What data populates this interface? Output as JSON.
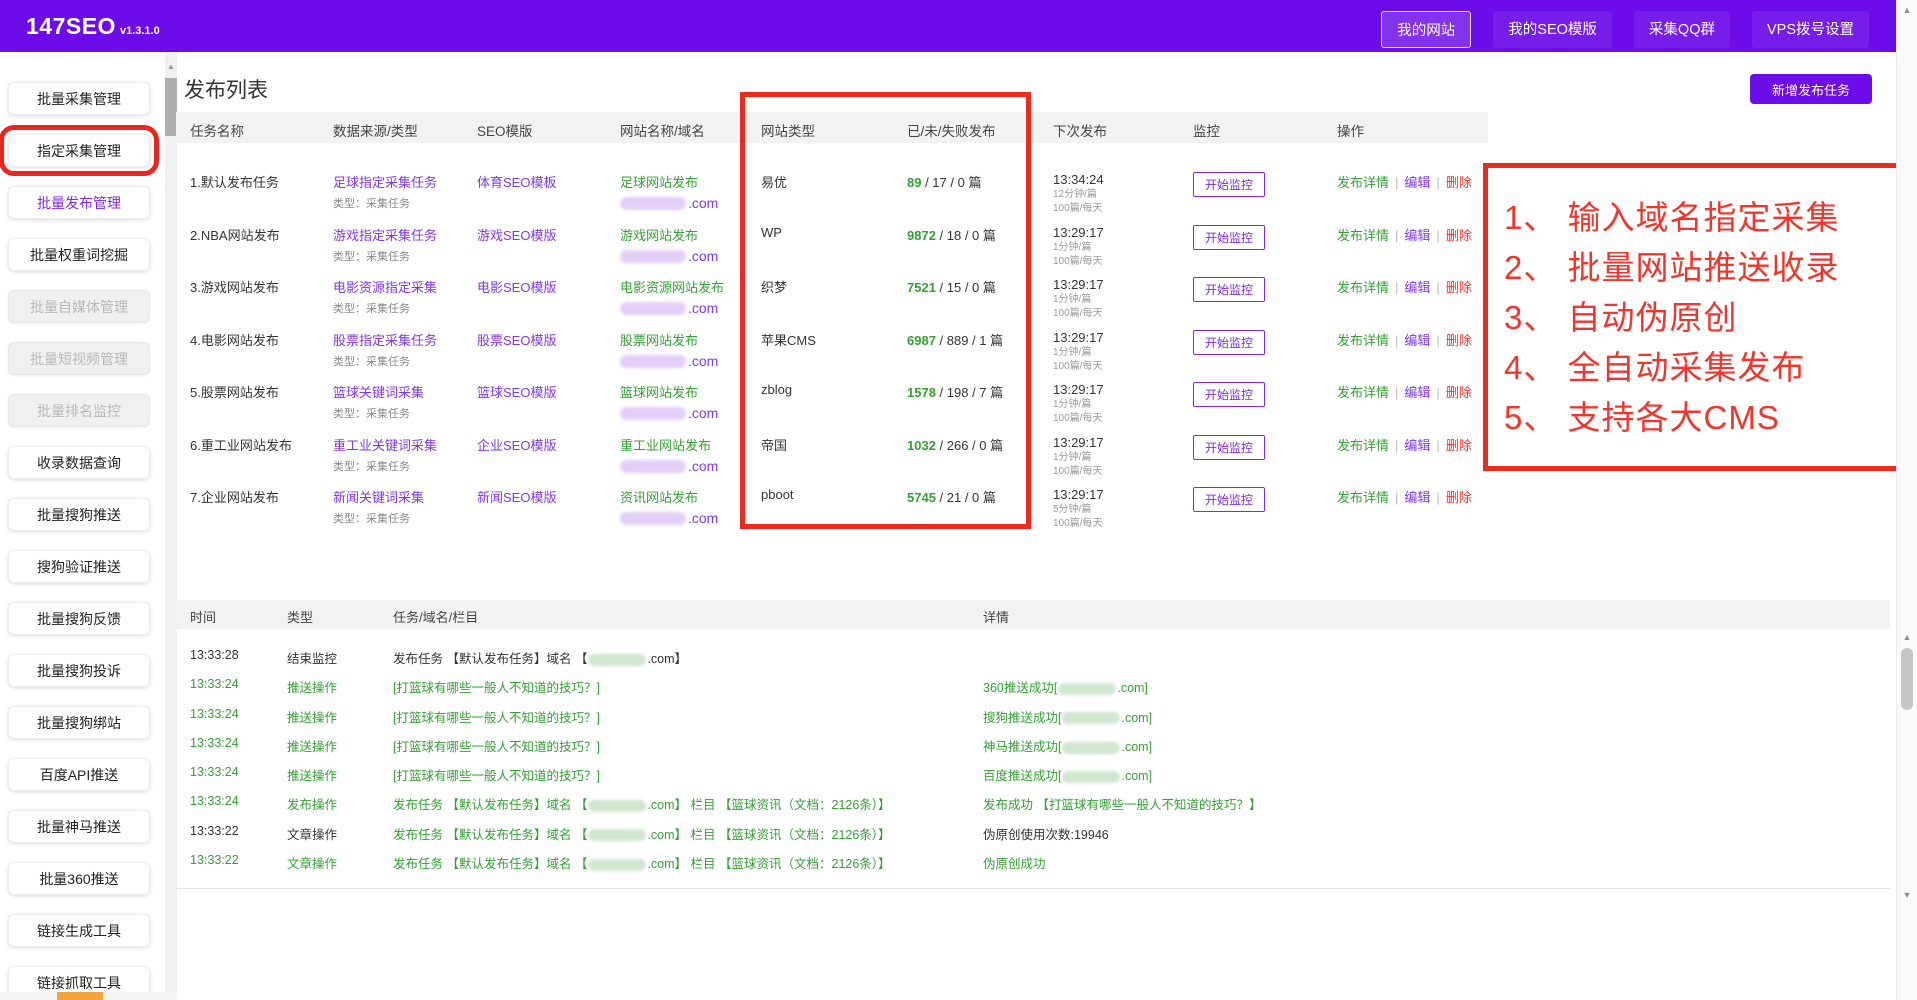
{
  "colors": {
    "accent_purple": "#6c0ce8",
    "link_purple": "#8038e8",
    "green": "#34a034",
    "annotation_red": "#f2352c",
    "box_red": "#ec2b20"
  },
  "header": {
    "logo": "147SEO",
    "version": "v1.3.1.0",
    "nav": [
      {
        "label": "我的网站",
        "active": true
      },
      {
        "label": "我的SEO模版",
        "active": false
      },
      {
        "label": "采集QQ群",
        "active": false
      },
      {
        "label": "VPS拨号设置",
        "active": false
      }
    ]
  },
  "sidebar": {
    "items": [
      {
        "label": "批量采集管理"
      },
      {
        "label": "指定采集管理",
        "boxed": true
      },
      {
        "label": "批量发布管理",
        "purple": true
      },
      {
        "label": "批量权重词挖掘"
      },
      {
        "label": "批量自媒体管理",
        "disabled": true
      },
      {
        "label": "批量短视频管理",
        "disabled": true
      },
      {
        "label": "批量排名监控",
        "disabled": true
      },
      {
        "label": "收录数据查询"
      },
      {
        "label": "批量搜狗推送"
      },
      {
        "label": "搜狗验证推送"
      },
      {
        "label": "批量搜狗反馈"
      },
      {
        "label": "批量搜狗投诉"
      },
      {
        "label": "批量搜狗绑站"
      },
      {
        "label": "百度API推送"
      },
      {
        "label": "批量神马推送"
      },
      {
        "label": "批量360推送"
      },
      {
        "label": "链接生成工具"
      },
      {
        "label": "链接抓取工具"
      }
    ]
  },
  "main": {
    "title": "发布列表",
    "new_task_button": "新增发布任务",
    "action_separator": "|",
    "publish_table": {
      "columns": [
        "任务名称",
        "数据来源/类型",
        "SEO模版",
        "网站名称/域名",
        "网站类型",
        "已/未/失败发布",
        "下次发布",
        "监控",
        "操作"
      ],
      "rows": [
        {
          "name": "1.默认发布任务",
          "source": "足球指定采集任务",
          "source_type": "类型：采集任务",
          "template": "体育SEO模板",
          "site": "足球网站发布",
          "domain": ".com",
          "site_type": "易优",
          "done": "89",
          "rest": " / 17 / 0 篇",
          "next": "13:34:24",
          "rate": "12分钟/篇",
          "daily": "100篇/每天",
          "monitor": "开始监控",
          "actions": [
            "发布详情",
            "编辑",
            "删除"
          ]
        },
        {
          "name": "2.NBA网站发布",
          "source": "游戏指定采集任务",
          "source_type": "类型：采集任务",
          "template": "游戏SEO模版",
          "site": "游戏网站发布",
          "domain": ".com",
          "site_type": "WP",
          "done": "9872",
          "rest": " / 18 / 0 篇",
          "next": "13:29:17",
          "rate": "1分钟/篇",
          "daily": "100篇/每天",
          "monitor": "开始监控",
          "actions": [
            "发布详情",
            "编辑",
            "删除"
          ]
        },
        {
          "name": "3.游戏网站发布",
          "source": "电影资源指定采集",
          "source_type": "类型：采集任务",
          "template": "电影SEO模版",
          "site": "电影资源网站发布",
          "domain": ".com",
          "site_type": "织梦",
          "done": "7521",
          "rest": " / 15 / 0 篇",
          "next": "13:29:17",
          "rate": "1分钟/篇",
          "daily": "100篇/每天",
          "monitor": "开始监控",
          "actions": [
            "发布详情",
            "编辑",
            "删除"
          ]
        },
        {
          "name": "4.电影网站发布",
          "source": "股票指定采集任务",
          "source_type": "类型：采集任务",
          "template": "股票SEO模版",
          "site": "股票网站发布",
          "domain": ".com",
          "site_type": "苹果CMS",
          "done": "6987",
          "rest": " / 889 / 1 篇",
          "next": "13:29:17",
          "rate": "1分钟/篇",
          "daily": "100篇/每天",
          "monitor": "开始监控",
          "actions": [
            "发布详情",
            "编辑",
            "删除"
          ]
        },
        {
          "name": "5.股票网站发布",
          "source": "篮球关键词采集",
          "source_type": "类型：采集任务",
          "template": "篮球SEO模版",
          "site": "篮球网站发布",
          "domain": ".com",
          "site_type": "zblog",
          "done": "1578",
          "rest": " / 198 / 7 篇",
          "next": "13:29:17",
          "rate": "1分钟/篇",
          "daily": "100篇/每天",
          "monitor": "开始监控",
          "actions": [
            "发布详情",
            "编辑",
            "删除"
          ]
        },
        {
          "name": "6.重工业网站发布",
          "source": "重工业关键词采集",
          "source_type": "类型：采集任务",
          "template": "企业SEO模版",
          "site": "重工业网站发布",
          "domain": ".com",
          "site_type": "帝国",
          "done": "1032",
          "rest": " / 266 / 0 篇",
          "next": "13:29:17",
          "rate": "1分钟/篇",
          "daily": "100篇/每天",
          "monitor": "开始监控",
          "actions": [
            "发布详情",
            "编辑",
            "删除"
          ]
        },
        {
          "name": "7.企业网站发布",
          "source": "新闻关键词采集",
          "source_type": "类型：采集任务",
          "template": "新闻SEO模版",
          "site": "资讯网站发布",
          "domain": ".com",
          "site_type": "pboot",
          "done": "5745",
          "rest": " / 21 / 0 篇",
          "next": "13:29:17",
          "rate": "5分钟/篇",
          "daily": "100篇/每天",
          "monitor": "开始监控",
          "actions": [
            "发布详情",
            "编辑",
            "删除"
          ]
        }
      ]
    },
    "annotation": {
      "items": [
        "1、 输入域名指定采集",
        "2、 批量网站推送收录",
        "3、 自动伪原创",
        "4、 全自动采集发布",
        "5、 支持各大CMS"
      ]
    },
    "log_table": {
      "columns": [
        "时间",
        "类型",
        "任务/域名/栏目",
        "详情"
      ],
      "rows": [
        {
          "time": "13:33:28",
          "type": "结束监控",
          "task_prefix": "发布任务 【默认发布任务】域名 【",
          "task_has_domain": true,
          "task_suffix": ".com】",
          "detail_prefix": "",
          "detail_has_domain": false,
          "detail_suffix": "",
          "time_green": false,
          "type_green": false,
          "task_green": false,
          "detail_green": false
        },
        {
          "time": "13:33:24",
          "type": "推送操作",
          "task_prefix": "[打篮球有哪些一般人不知道的技巧？]",
          "task_has_domain": false,
          "task_suffix": "",
          "detail_prefix": "360推送成功[",
          "detail_has_domain": true,
          "detail_suffix": ".com]",
          "time_green": true,
          "type_green": true,
          "task_green": true,
          "detail_green": true
        },
        {
          "time": "13:33:24",
          "type": "推送操作",
          "task_prefix": "[打篮球有哪些一般人不知道的技巧？]",
          "task_has_domain": false,
          "task_suffix": "",
          "detail_prefix": "搜狗推送成功[",
          "detail_has_domain": true,
          "detail_suffix": ".com]",
          "time_green": true,
          "type_green": true,
          "task_green": true,
          "detail_green": true
        },
        {
          "time": "13:33:24",
          "type": "推送操作",
          "task_prefix": "[打篮球有哪些一般人不知道的技巧？]",
          "task_has_domain": false,
          "task_suffix": "",
          "detail_prefix": "神马推送成功[",
          "detail_has_domain": true,
          "detail_suffix": ".com]",
          "time_green": true,
          "type_green": true,
          "task_green": true,
          "detail_green": true
        },
        {
          "time": "13:33:24",
          "type": "推送操作",
          "task_prefix": "[打篮球有哪些一般人不知道的技巧？]",
          "task_has_domain": false,
          "task_suffix": "",
          "detail_prefix": "百度推送成功[",
          "detail_has_domain": true,
          "detail_suffix": ".com]",
          "time_green": true,
          "type_green": true,
          "task_green": true,
          "detail_green": true
        },
        {
          "time": "13:33:24",
          "type": "发布操作",
          "task_prefix": "发布任务 【默认发布任务】域名 【",
          "task_has_domain": true,
          "task_suffix": ".com】 栏目 【篮球资讯（文档：2126条）】",
          "detail_prefix": "发布成功 【打篮球有哪些一般人不知道的技巧？】",
          "detail_has_domain": false,
          "detail_suffix": "",
          "time_green": true,
          "type_green": true,
          "task_green": true,
          "detail_green": true
        },
        {
          "time": "13:33:22",
          "type": "文章操作",
          "task_prefix": "发布任务 【默认发布任务】域名 【",
          "task_has_domain": true,
          "task_suffix": ".com】 栏目 【篮球资讯（文档：2126条）】",
          "detail_prefix": "伪原创使用次数:19946",
          "detail_has_domain": false,
          "detail_suffix": "",
          "time_green": false,
          "type_green": false,
          "task_green": true,
          "detail_green": false
        },
        {
          "time": "13:33:22",
          "type": "文章操作",
          "task_prefix": "发布任务 【默认发布任务】域名 【",
          "task_has_domain": true,
          "task_suffix": ".com】 栏目 【篮球资讯（文档：2126条）】",
          "detail_prefix": "伪原创成功",
          "detail_has_domain": false,
          "detail_suffix": "",
          "time_green": true,
          "type_green": true,
          "task_green": true,
          "detail_green": true
        }
      ]
    }
  },
  "scrollbars": {
    "up_arrow": "▲",
    "down_arrow": "▼"
  }
}
